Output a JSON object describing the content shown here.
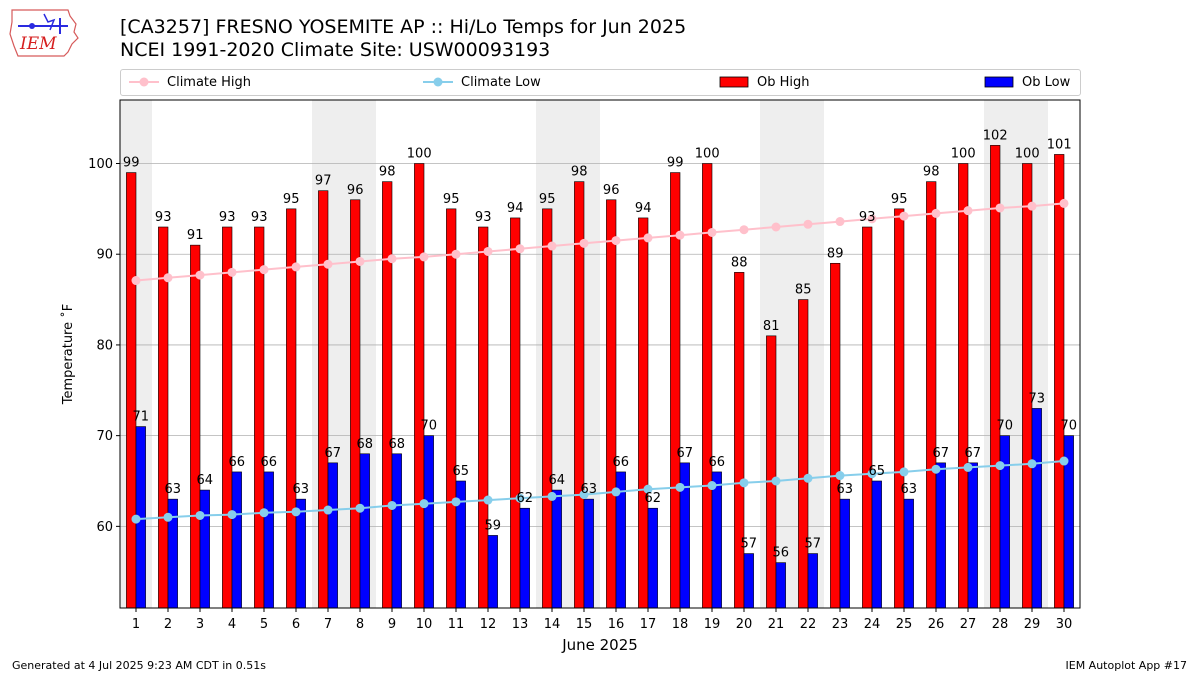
{
  "header": {
    "title_line1": "[CA3257] FRESNO YOSEMITE AP :: Hi/Lo Temps for Jun 2025",
    "title_line2": "NCEI 1991-2020 Climate Site: USW00093193",
    "logo_text": "IEM"
  },
  "footer": {
    "generated": "Generated at 4 Jul 2025 9:23 AM CDT in 0.51s",
    "app": "IEM Autoplot App #17"
  },
  "colors": {
    "ob_high": "#ff0000",
    "ob_low": "#0000ff",
    "climate_high": "#ffc0cb",
    "climate_low": "#87ceeb",
    "weekend_shade": "#eeeeee",
    "grid": "#b0b0b0"
  },
  "chart_data": {
    "type": "bar",
    "xlabel": "June 2025",
    "ylabel": "Temperature ˚F",
    "ylim": [
      51,
      107
    ],
    "yticks": [
      60,
      70,
      80,
      90,
      100
    ],
    "grid": "horizontal",
    "legend_position": "top",
    "categories": [
      1,
      2,
      3,
      4,
      5,
      6,
      7,
      8,
      9,
      10,
      11,
      12,
      13,
      14,
      15,
      16,
      17,
      18,
      19,
      20,
      21,
      22,
      23,
      24,
      25,
      26,
      27,
      28,
      29,
      30
    ],
    "weekend_days": [
      1,
      7,
      8,
      14,
      15,
      21,
      22,
      28,
      29
    ],
    "series": [
      {
        "name": "Climate High",
        "kind": "line",
        "values": [
          87.1,
          87.4,
          87.7,
          88.0,
          88.3,
          88.6,
          88.9,
          89.2,
          89.5,
          89.7,
          90.0,
          90.3,
          90.6,
          90.9,
          91.2,
          91.5,
          91.8,
          92.1,
          92.4,
          92.7,
          93.0,
          93.3,
          93.6,
          93.9,
          94.2,
          94.5,
          94.8,
          95.1,
          95.3,
          95.6
        ]
      },
      {
        "name": "Climate Low",
        "kind": "line",
        "values": [
          60.8,
          61.0,
          61.2,
          61.3,
          61.5,
          61.6,
          61.8,
          62.0,
          62.3,
          62.5,
          62.7,
          62.9,
          63.1,
          63.3,
          63.5,
          63.8,
          64.1,
          64.3,
          64.5,
          64.8,
          65.0,
          65.3,
          65.6,
          65.8,
          66.0,
          66.3,
          66.5,
          66.7,
          66.9,
          67.2
        ]
      },
      {
        "name": "Ob High",
        "kind": "bar",
        "values": [
          99,
          93,
          91,
          93,
          93,
          95,
          97,
          96,
          98,
          100,
          95,
          93,
          94,
          95,
          98,
          96,
          94,
          99,
          100,
          88,
          81,
          85,
          89,
          93,
          95,
          98,
          100,
          102,
          100,
          101
        ]
      },
      {
        "name": "Ob Low",
        "kind": "bar",
        "values": [
          71,
          63,
          64,
          66,
          66,
          63,
          67,
          68,
          68,
          70,
          65,
          59,
          62,
          64,
          63,
          66,
          62,
          67,
          66,
          57,
          56,
          57,
          63,
          65,
          63,
          67,
          67,
          70,
          73,
          70
        ]
      }
    ]
  }
}
